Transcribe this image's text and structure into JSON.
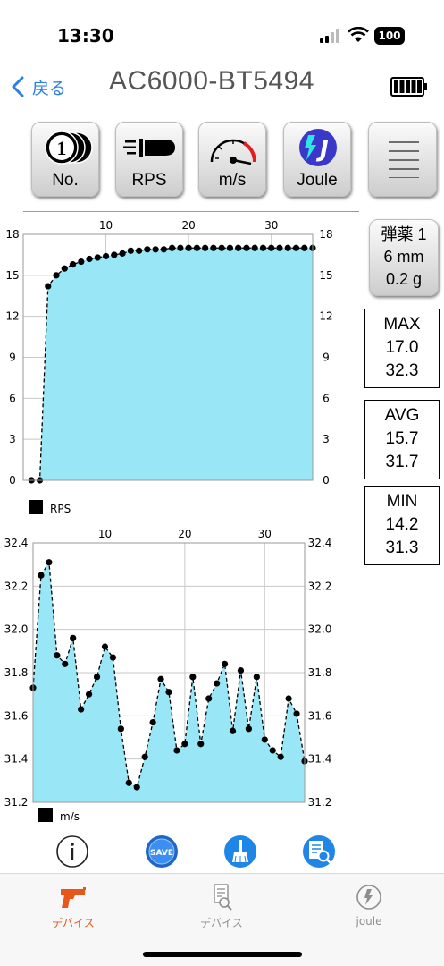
{
  "status_bar": {
    "time": "13:30",
    "battery": "100"
  },
  "nav": {
    "back_label": "戻る",
    "title": "AC6000-BT5494"
  },
  "toolbar": {
    "no_label": "No.",
    "no_digit": "1",
    "rps_label": "RPS",
    "ms_label": "m/s",
    "joule_label": "Joule",
    "joule_letter": "J"
  },
  "ammo": {
    "line1": "弾薬 1",
    "line2": "6 mm",
    "line3": "0.2 g"
  },
  "stats": {
    "max": {
      "label": "MAX",
      "rps": "17.0",
      "ms": "32.3"
    },
    "avg": {
      "label": "AVG",
      "rps": "15.7",
      "ms": "31.7"
    },
    "min": {
      "label": "MIN",
      "rps": "14.2",
      "ms": "31.3"
    }
  },
  "tools": {
    "save_label": "SAVE"
  },
  "tabs": [
    {
      "label": "デバイス",
      "active": true
    },
    {
      "label": "デバイス",
      "active": false
    },
    {
      "label": "joule",
      "active": false
    }
  ],
  "colors": {
    "accent": "#e8571a",
    "fill": "#99e6f7",
    "link": "#2b7fe0",
    "tab_inactive": "#8e8e8e"
  },
  "chart_data": [
    {
      "type": "area",
      "legend": "RPS",
      "x_ticks": [
        10,
        20,
        30
      ],
      "ylim": [
        0,
        18
      ],
      "y_ticks": [
        "0",
        "3",
        "6",
        "9",
        "12",
        "15",
        "18"
      ],
      "grid": true,
      "x": [
        1,
        2,
        3,
        4,
        5,
        6,
        7,
        8,
        9,
        10,
        11,
        12,
        13,
        14,
        15,
        16,
        17,
        18,
        19,
        20,
        21,
        22,
        23,
        24,
        25,
        26,
        27,
        28,
        29,
        30,
        31,
        32,
        33,
        34,
        35
      ],
      "values": [
        0,
        0,
        14.2,
        15.0,
        15.5,
        15.8,
        16.0,
        16.2,
        16.3,
        16.4,
        16.5,
        16.6,
        16.8,
        16.8,
        16.9,
        16.9,
        16.9,
        17.0,
        17.0,
        17.0,
        17.0,
        17.0,
        17.0,
        17.0,
        17.0,
        17.0,
        17.0,
        17.0,
        17.0,
        17.0,
        17.0,
        17.0,
        17.0,
        17.0,
        17.0
      ]
    },
    {
      "type": "area",
      "legend": "m/s",
      "x_ticks": [
        10,
        20,
        30
      ],
      "ylim": [
        31.2,
        32.4
      ],
      "y_ticks": [
        "31.2",
        "31.4",
        "31.6",
        "31.8",
        "32.0",
        "32.2",
        "32.4"
      ],
      "grid": true,
      "x": [
        1,
        2,
        3,
        4,
        5,
        6,
        7,
        8,
        9,
        10,
        11,
        12,
        13,
        14,
        15,
        16,
        17,
        18,
        19,
        20,
        21,
        22,
        23,
        24,
        25,
        26,
        27,
        28,
        29,
        30,
        31,
        32,
        33,
        34,
        35
      ],
      "values": [
        31.73,
        32.25,
        32.31,
        31.88,
        31.84,
        31.96,
        31.63,
        31.7,
        31.78,
        31.92,
        31.87,
        31.54,
        31.29,
        31.27,
        31.41,
        31.57,
        31.77,
        31.71,
        31.44,
        31.47,
        31.78,
        31.47,
        31.68,
        31.75,
        31.84,
        31.53,
        31.81,
        31.54,
        31.78,
        31.49,
        31.44,
        31.41,
        31.68,
        31.61,
        31.39
      ]
    }
  ]
}
